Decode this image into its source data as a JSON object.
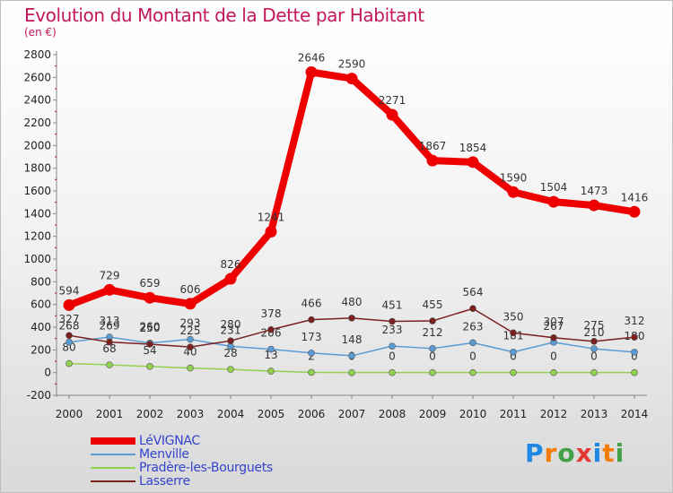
{
  "title": "Evolution du Montant de la Dette par Habitant",
  "subtitle": "(en €)",
  "logo": {
    "text": "Proxiti",
    "letters": [
      "P",
      "r",
      "o",
      "x",
      "i",
      "t",
      "i"
    ],
    "colors": [
      "#1e88e5",
      "#f57c00",
      "#43a047",
      "#e53935",
      "#1e88e5",
      "#f57c00",
      "#43a047"
    ]
  },
  "chart_data": {
    "type": "line",
    "x": [
      2000,
      2001,
      2002,
      2003,
      2004,
      2005,
      2006,
      2007,
      2008,
      2009,
      2010,
      2011,
      2012,
      2013,
      2014
    ],
    "ylim": [
      -200,
      2800
    ],
    "yticks": [
      -200,
      0,
      200,
      400,
      600,
      800,
      1000,
      1200,
      1400,
      1600,
      1800,
      2000,
      2200,
      2400,
      2600,
      2800
    ],
    "grid": false,
    "legend_position": "bottom-left",
    "series": [
      {
        "name": "LéVIGNAC",
        "color": "#ee0000",
        "values": [
          594,
          729,
          659,
          606,
          826,
          1241,
          2646,
          2590,
          2271,
          1867,
          1854,
          1590,
          1504,
          1473,
          1416
        ]
      },
      {
        "name": "Menville",
        "color": "#5b9bd5",
        "values": [
          268,
          313,
          260,
          293,
          231,
          206,
          173,
          148,
          233,
          212,
          263,
          181,
          267,
          210,
          180
        ]
      },
      {
        "name": "Pradère-les-Bourguets",
        "color": "#92d050",
        "values": [
          80,
          68,
          54,
          40,
          28,
          13,
          2,
          0,
          0,
          0,
          0,
          0,
          0,
          0,
          0
        ]
      },
      {
        "name": "Lasserre",
        "color": "#7b1f1f",
        "values": [
          327,
          269,
          250,
          225,
          280,
          378,
          466,
          480,
          451,
          455,
          564,
          350,
          307,
          275,
          312
        ]
      }
    ]
  }
}
